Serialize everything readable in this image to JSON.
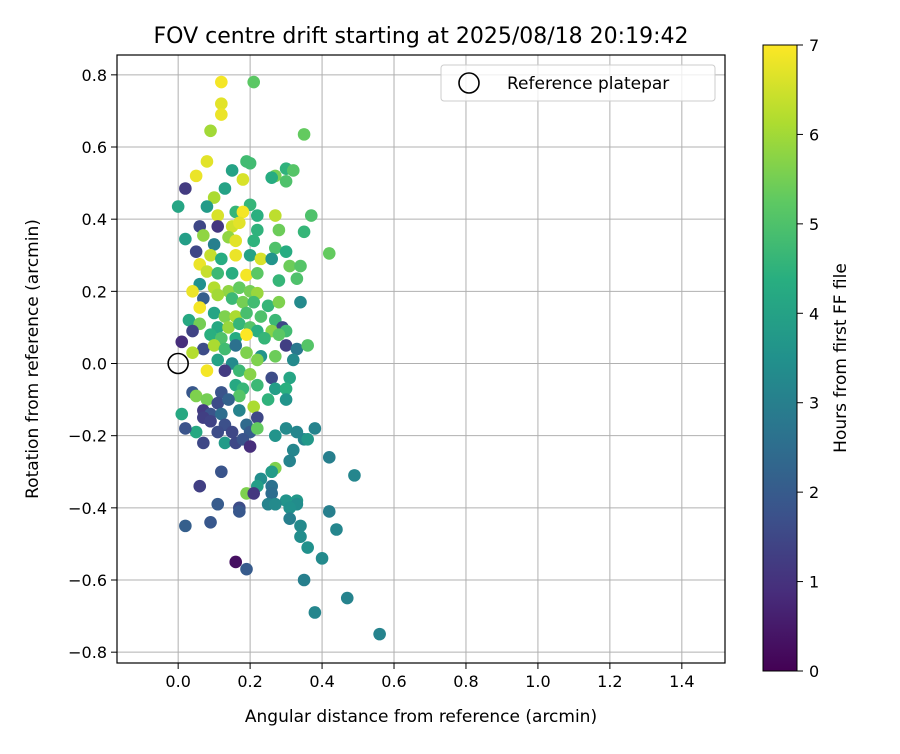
{
  "chart_data": {
    "type": "scatter",
    "title": "FOV centre drift starting at 2025/08/18 20:19:42",
    "xlabel": "Angular distance from reference (arcmin)",
    "ylabel": "Rotation from reference (arcmin)",
    "xlim": [
      -0.17,
      1.52
    ],
    "ylim": [
      -0.83,
      0.855
    ],
    "xticks": [
      0.0,
      0.2,
      0.4,
      0.6,
      0.8,
      1.0,
      1.2,
      1.4
    ],
    "yticks": [
      -0.8,
      -0.6,
      -0.4,
      -0.2,
      0.0,
      0.2,
      0.4,
      0.6,
      0.8
    ],
    "xtick_labels": [
      "0.0",
      "0.2",
      "0.4",
      "0.6",
      "0.8",
      "1.0",
      "1.2",
      "1.4"
    ],
    "ytick_labels": [
      "−0.8",
      "−0.6",
      "−0.4",
      "−0.2",
      "0.0",
      "0.2",
      "0.4",
      "0.6",
      "0.8"
    ],
    "grid": true,
    "colormap": "viridis",
    "colorbar": {
      "label": "Hours from first FF file",
      "range": [
        0,
        7
      ],
      "ticks": [
        "0",
        "1",
        "2",
        "3",
        "4",
        "5",
        "6",
        "7"
      ]
    },
    "legend": {
      "position": "top-right",
      "entries": [
        {
          "label": "Reference platepar",
          "marker": "hollow-circle"
        }
      ]
    },
    "reference_point": {
      "x": 0.0,
      "y": 0.0
    },
    "points": [
      {
        "x": 0.12,
        "y": 0.78,
        "h": 6.9
      },
      {
        "x": 0.21,
        "y": 0.78,
        "h": 5.2
      },
      {
        "x": 0.12,
        "y": 0.72,
        "h": 6.7
      },
      {
        "x": 0.12,
        "y": 0.69,
        "h": 6.8
      },
      {
        "x": 0.35,
        "y": 0.635,
        "h": 5.3
      },
      {
        "x": 0.09,
        "y": 0.645,
        "h": 6.0
      },
      {
        "x": 0.3,
        "y": 0.54,
        "h": 4.5
      },
      {
        "x": 0.32,
        "y": 0.535,
        "h": 5.1
      },
      {
        "x": 0.27,
        "y": 0.52,
        "h": 5.5
      },
      {
        "x": 0.08,
        "y": 0.56,
        "h": 6.7
      },
      {
        "x": 0.15,
        "y": 0.535,
        "h": 4.0
      },
      {
        "x": 0.05,
        "y": 0.52,
        "h": 6.8
      },
      {
        "x": 0.19,
        "y": 0.56,
        "h": 4.8
      },
      {
        "x": 0.02,
        "y": 0.485,
        "h": 1.2
      },
      {
        "x": 0.13,
        "y": 0.485,
        "h": 4.0
      },
      {
        "x": 0.2,
        "y": 0.555,
        "h": 4.8
      },
      {
        "x": 0.18,
        "y": 0.51,
        "h": 6.6
      },
      {
        "x": 0.26,
        "y": 0.515,
        "h": 4.3
      },
      {
        "x": 0.3,
        "y": 0.505,
        "h": 5.0
      },
      {
        "x": 0.0,
        "y": 0.435,
        "h": 4.1
      },
      {
        "x": 0.1,
        "y": 0.46,
        "h": 6.1
      },
      {
        "x": 0.08,
        "y": 0.435,
        "h": 3.8
      },
      {
        "x": 0.11,
        "y": 0.41,
        "h": 6.6
      },
      {
        "x": 0.16,
        "y": 0.42,
        "h": 4.6
      },
      {
        "x": 0.2,
        "y": 0.44,
        "h": 4.6
      },
      {
        "x": 0.18,
        "y": 0.42,
        "h": 6.9
      },
      {
        "x": 0.22,
        "y": 0.41,
        "h": 4.4
      },
      {
        "x": 0.27,
        "y": 0.41,
        "h": 6.3
      },
      {
        "x": 0.37,
        "y": 0.41,
        "h": 5.0
      },
      {
        "x": 0.06,
        "y": 0.38,
        "h": 1.5
      },
      {
        "x": 0.11,
        "y": 0.38,
        "h": 1.1
      },
      {
        "x": 0.15,
        "y": 0.38,
        "h": 6.5
      },
      {
        "x": 0.17,
        "y": 0.39,
        "h": 6.7
      },
      {
        "x": 0.22,
        "y": 0.37,
        "h": 4.5
      },
      {
        "x": 0.28,
        "y": 0.37,
        "h": 5.4
      },
      {
        "x": 0.35,
        "y": 0.365,
        "h": 4.6
      },
      {
        "x": 0.02,
        "y": 0.345,
        "h": 3.9
      },
      {
        "x": 0.07,
        "y": 0.355,
        "h": 5.8
      },
      {
        "x": 0.1,
        "y": 0.33,
        "h": 3.0
      },
      {
        "x": 0.14,
        "y": 0.35,
        "h": 5.8
      },
      {
        "x": 0.16,
        "y": 0.34,
        "h": 6.7
      },
      {
        "x": 0.21,
        "y": 0.34,
        "h": 4.5
      },
      {
        "x": 0.27,
        "y": 0.32,
        "h": 5.0
      },
      {
        "x": 0.3,
        "y": 0.31,
        "h": 4.3
      },
      {
        "x": 0.42,
        "y": 0.305,
        "h": 5.3
      },
      {
        "x": 0.05,
        "y": 0.31,
        "h": 1.5
      },
      {
        "x": 0.09,
        "y": 0.3,
        "h": 6.4
      },
      {
        "x": 0.12,
        "y": 0.29,
        "h": 4.3
      },
      {
        "x": 0.16,
        "y": 0.3,
        "h": 6.8
      },
      {
        "x": 0.2,
        "y": 0.3,
        "h": 4.0
      },
      {
        "x": 0.23,
        "y": 0.29,
        "h": 6.6
      },
      {
        "x": 0.26,
        "y": 0.29,
        "h": 3.6
      },
      {
        "x": 0.31,
        "y": 0.27,
        "h": 5.4
      },
      {
        "x": 0.34,
        "y": 0.27,
        "h": 5.1
      },
      {
        "x": 0.06,
        "y": 0.275,
        "h": 6.8
      },
      {
        "x": 0.08,
        "y": 0.255,
        "h": 6.4
      },
      {
        "x": 0.11,
        "y": 0.25,
        "h": 4.7
      },
      {
        "x": 0.15,
        "y": 0.25,
        "h": 4.3
      },
      {
        "x": 0.19,
        "y": 0.245,
        "h": 6.9
      },
      {
        "x": 0.22,
        "y": 0.25,
        "h": 5.2
      },
      {
        "x": 0.33,
        "y": 0.235,
        "h": 5.0
      },
      {
        "x": 0.28,
        "y": 0.23,
        "h": 4.6
      },
      {
        "x": 0.06,
        "y": 0.22,
        "h": 3.5
      },
      {
        "x": 0.1,
        "y": 0.21,
        "h": 6.2
      },
      {
        "x": 0.14,
        "y": 0.2,
        "h": 5.8
      },
      {
        "x": 0.17,
        "y": 0.21,
        "h": 5.3
      },
      {
        "x": 0.2,
        "y": 0.2,
        "h": 5.5
      },
      {
        "x": 0.22,
        "y": 0.195,
        "h": 5.9
      },
      {
        "x": 0.04,
        "y": 0.2,
        "h": 6.8
      },
      {
        "x": 0.07,
        "y": 0.18,
        "h": 2.1
      },
      {
        "x": 0.11,
        "y": 0.19,
        "h": 6.0
      },
      {
        "x": 0.15,
        "y": 0.18,
        "h": 4.7
      },
      {
        "x": 0.18,
        "y": 0.17,
        "h": 5.5
      },
      {
        "x": 0.21,
        "y": 0.17,
        "h": 4.8
      },
      {
        "x": 0.25,
        "y": 0.16,
        "h": 4.6
      },
      {
        "x": 0.28,
        "y": 0.17,
        "h": 5.6
      },
      {
        "x": 0.34,
        "y": 0.17,
        "h": 3.3
      },
      {
        "x": 0.06,
        "y": 0.155,
        "h": 6.9
      },
      {
        "x": 0.1,
        "y": 0.14,
        "h": 4.1
      },
      {
        "x": 0.13,
        "y": 0.13,
        "h": 5.6
      },
      {
        "x": 0.16,
        "y": 0.13,
        "h": 6.1
      },
      {
        "x": 0.19,
        "y": 0.14,
        "h": 4.9
      },
      {
        "x": 0.23,
        "y": 0.13,
        "h": 5.0
      },
      {
        "x": 0.27,
        "y": 0.12,
        "h": 4.7
      },
      {
        "x": 0.29,
        "y": 0.1,
        "h": 1.5
      },
      {
        "x": 0.03,
        "y": 0.12,
        "h": 4.2
      },
      {
        "x": 0.06,
        "y": 0.11,
        "h": 5.5
      },
      {
        "x": 0.11,
        "y": 0.1,
        "h": 4.2
      },
      {
        "x": 0.14,
        "y": 0.1,
        "h": 5.9
      },
      {
        "x": 0.17,
        "y": 0.11,
        "h": 4.6
      },
      {
        "x": 0.2,
        "y": 0.1,
        "h": 5.1
      },
      {
        "x": 0.22,
        "y": 0.09,
        "h": 4.4
      },
      {
        "x": 0.26,
        "y": 0.09,
        "h": 5.7
      },
      {
        "x": 0.3,
        "y": 0.09,
        "h": 4.8
      },
      {
        "x": 0.04,
        "y": 0.09,
        "h": 1.4
      },
      {
        "x": 0.09,
        "y": 0.08,
        "h": 4.4
      },
      {
        "x": 0.12,
        "y": 0.07,
        "h": 5.0
      },
      {
        "x": 0.16,
        "y": 0.07,
        "h": 4.3
      },
      {
        "x": 0.19,
        "y": 0.08,
        "h": 7.0
      },
      {
        "x": 0.24,
        "y": 0.07,
        "h": 4.6
      },
      {
        "x": 0.28,
        "y": 0.08,
        "h": 5.2
      },
      {
        "x": 0.01,
        "y": 0.06,
        "h": 0.9
      },
      {
        "x": 0.07,
        "y": 0.04,
        "h": 1.6
      },
      {
        "x": 0.1,
        "y": 0.05,
        "h": 6.1
      },
      {
        "x": 0.13,
        "y": 0.04,
        "h": 4.8
      },
      {
        "x": 0.16,
        "y": 0.05,
        "h": 2.6
      },
      {
        "x": 0.19,
        "y": 0.03,
        "h": 5.6
      },
      {
        "x": 0.23,
        "y": 0.02,
        "h": 3.6
      },
      {
        "x": 0.3,
        "y": 0.05,
        "h": 1.3
      },
      {
        "x": 0.33,
        "y": 0.04,
        "h": 2.8
      },
      {
        "x": 0.36,
        "y": 0.05,
        "h": 5.1
      },
      {
        "x": 0.04,
        "y": 0.03,
        "h": 6.2
      },
      {
        "x": 0.11,
        "y": 0.01,
        "h": 4.0
      },
      {
        "x": 0.15,
        "y": 0.0,
        "h": 3.3
      },
      {
        "x": 0.22,
        "y": 0.01,
        "h": 5.6
      },
      {
        "x": 0.27,
        "y": 0.02,
        "h": 5.4
      },
      {
        "x": 0.32,
        "y": 0.01,
        "h": 3.3
      },
      {
        "x": 0.08,
        "y": -0.02,
        "h": 6.9
      },
      {
        "x": 0.13,
        "y": -0.02,
        "h": 1.2
      },
      {
        "x": 0.17,
        "y": -0.02,
        "h": 4.7
      },
      {
        "x": 0.2,
        "y": -0.03,
        "h": 5.7
      },
      {
        "x": 0.26,
        "y": -0.04,
        "h": 1.6
      },
      {
        "x": 0.31,
        "y": -0.04,
        "h": 4.1
      },
      {
        "x": 0.16,
        "y": -0.06,
        "h": 4.2
      },
      {
        "x": 0.18,
        "y": -0.07,
        "h": 4.6
      },
      {
        "x": 0.22,
        "y": -0.06,
        "h": 4.7
      },
      {
        "x": 0.27,
        "y": -0.07,
        "h": 3.9
      },
      {
        "x": 0.04,
        "y": -0.08,
        "h": 1.9
      },
      {
        "x": 0.05,
        "y": -0.09,
        "h": 5.6
      },
      {
        "x": 0.12,
        "y": -0.08,
        "h": 1.8
      },
      {
        "x": 0.17,
        "y": -0.09,
        "h": 5.1
      },
      {
        "x": 0.3,
        "y": -0.07,
        "h": 4.4
      },
      {
        "x": 0.08,
        "y": -0.1,
        "h": 5.5
      },
      {
        "x": 0.11,
        "y": -0.11,
        "h": 1.6
      },
      {
        "x": 0.14,
        "y": -0.1,
        "h": 2.2
      },
      {
        "x": 0.25,
        "y": -0.1,
        "h": 4.5
      },
      {
        "x": 0.3,
        "y": -0.1,
        "h": 3.6
      },
      {
        "x": 0.01,
        "y": -0.14,
        "h": 4.2
      },
      {
        "x": 0.07,
        "y": -0.13,
        "h": 1.2
      },
      {
        "x": 0.09,
        "y": -0.14,
        "h": 1.8
      },
      {
        "x": 0.12,
        "y": -0.14,
        "h": 2.5
      },
      {
        "x": 0.17,
        "y": -0.13,
        "h": 3.1
      },
      {
        "x": 0.21,
        "y": -0.12,
        "h": 6.1
      },
      {
        "x": 0.07,
        "y": -0.15,
        "h": 1.3
      },
      {
        "x": 0.09,
        "y": -0.16,
        "h": 1.4
      },
      {
        "x": 0.22,
        "y": -0.15,
        "h": 1.5
      },
      {
        "x": 0.13,
        "y": -0.17,
        "h": 1.7
      },
      {
        "x": 0.19,
        "y": -0.17,
        "h": 2.4
      },
      {
        "x": 0.05,
        "y": -0.19,
        "h": 4.2
      },
      {
        "x": 0.11,
        "y": -0.19,
        "h": 1.6
      },
      {
        "x": 0.15,
        "y": -0.19,
        "h": 1.5
      },
      {
        "x": 0.2,
        "y": -0.19,
        "h": 2.0
      },
      {
        "x": 0.22,
        "y": -0.18,
        "h": 5.3
      },
      {
        "x": 0.27,
        "y": -0.2,
        "h": 3.6
      },
      {
        "x": 0.3,
        "y": -0.18,
        "h": 3.3
      },
      {
        "x": 0.33,
        "y": -0.19,
        "h": 3.2
      },
      {
        "x": 0.38,
        "y": -0.18,
        "h": 3.1
      },
      {
        "x": 0.02,
        "y": -0.18,
        "h": 1.8
      },
      {
        "x": 0.07,
        "y": -0.22,
        "h": 1.5
      },
      {
        "x": 0.13,
        "y": -0.22,
        "h": 3.8
      },
      {
        "x": 0.16,
        "y": -0.22,
        "h": 1.5
      },
      {
        "x": 0.18,
        "y": -0.21,
        "h": 1.8
      },
      {
        "x": 0.2,
        "y": -0.23,
        "h": 0.9
      },
      {
        "x": 0.35,
        "y": -0.21,
        "h": 3.2
      },
      {
        "x": 0.36,
        "y": -0.21,
        "h": 3.7
      },
      {
        "x": 0.32,
        "y": -0.24,
        "h": 3.2
      },
      {
        "x": 0.31,
        "y": -0.27,
        "h": 3.1
      },
      {
        "x": 0.42,
        "y": -0.26,
        "h": 3.0
      },
      {
        "x": 0.12,
        "y": -0.3,
        "h": 1.8
      },
      {
        "x": 0.27,
        "y": -0.29,
        "h": 5.6
      },
      {
        "x": 0.26,
        "y": -0.3,
        "h": 3.8
      },
      {
        "x": 0.23,
        "y": -0.32,
        "h": 3.4
      },
      {
        "x": 0.49,
        "y": -0.31,
        "h": 3.2
      },
      {
        "x": 0.06,
        "y": -0.34,
        "h": 1.3
      },
      {
        "x": 0.22,
        "y": -0.34,
        "h": 3.9
      },
      {
        "x": 0.26,
        "y": -0.34,
        "h": 2.6
      },
      {
        "x": 0.19,
        "y": -0.36,
        "h": 5.6
      },
      {
        "x": 0.21,
        "y": -0.36,
        "h": 1.1
      },
      {
        "x": 0.26,
        "y": -0.36,
        "h": 2.5
      },
      {
        "x": 0.3,
        "y": -0.38,
        "h": 3.6
      },
      {
        "x": 0.33,
        "y": -0.38,
        "h": 3.7
      },
      {
        "x": 0.11,
        "y": -0.39,
        "h": 2.0
      },
      {
        "x": 0.25,
        "y": -0.39,
        "h": 3.1
      },
      {
        "x": 0.27,
        "y": -0.39,
        "h": 3.3
      },
      {
        "x": 0.33,
        "y": -0.39,
        "h": 3.4
      },
      {
        "x": 0.17,
        "y": -0.4,
        "h": 1.6
      },
      {
        "x": 0.31,
        "y": -0.4,
        "h": 3.5
      },
      {
        "x": 0.17,
        "y": -0.41,
        "h": 1.9
      },
      {
        "x": 0.42,
        "y": -0.41,
        "h": 3.0
      },
      {
        "x": 0.31,
        "y": -0.43,
        "h": 3.0
      },
      {
        "x": 0.02,
        "y": -0.45,
        "h": 2.1
      },
      {
        "x": 0.09,
        "y": -0.44,
        "h": 1.9
      },
      {
        "x": 0.34,
        "y": -0.45,
        "h": 3.3
      },
      {
        "x": 0.44,
        "y": -0.46,
        "h": 3.2
      },
      {
        "x": 0.34,
        "y": -0.48,
        "h": 3.4
      },
      {
        "x": 0.36,
        "y": -0.51,
        "h": 3.5
      },
      {
        "x": 0.4,
        "y": -0.54,
        "h": 3.3
      },
      {
        "x": 0.16,
        "y": -0.55,
        "h": 0.3
      },
      {
        "x": 0.19,
        "y": -0.57,
        "h": 2.0
      },
      {
        "x": 0.35,
        "y": -0.6,
        "h": 3.0
      },
      {
        "x": 0.47,
        "y": -0.65,
        "h": 3.1
      },
      {
        "x": 0.38,
        "y": -0.69,
        "h": 3.2
      },
      {
        "x": 0.56,
        "y": -0.75,
        "h": 3.1
      }
    ]
  }
}
